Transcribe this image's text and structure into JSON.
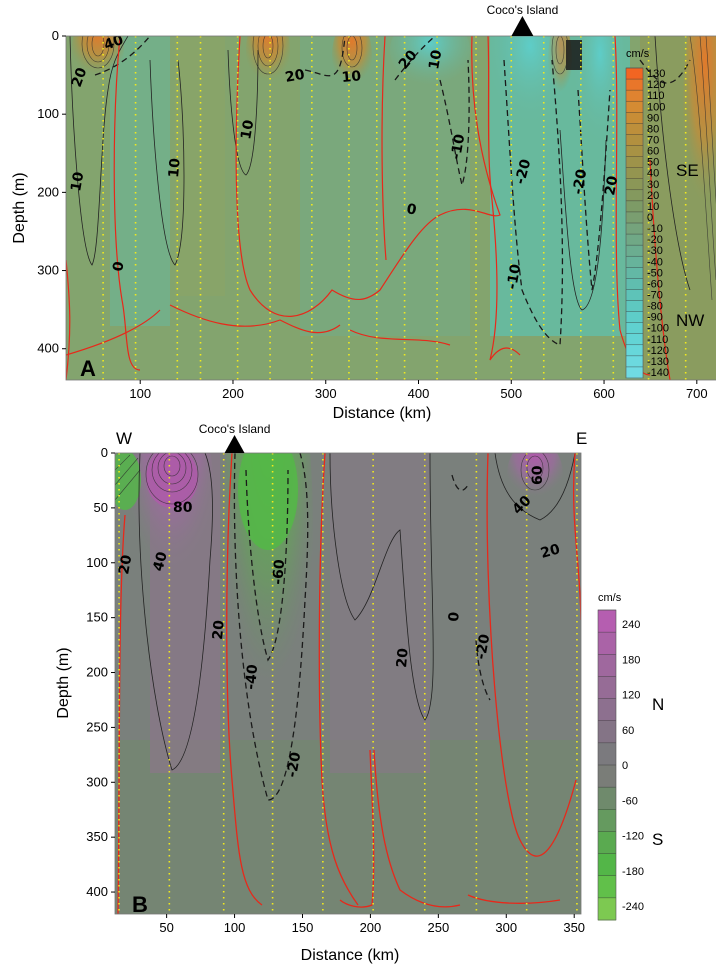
{
  "chart_data": [
    {
      "type": "heatmap",
      "panel_label": "A",
      "title": "",
      "xlabel": "Distance (km)",
      "ylabel": "Depth (m)",
      "xlim": [
        20,
        725
      ],
      "ylim": [
        440,
        0
      ],
      "x_ticks": [
        100,
        200,
        300,
        400,
        500,
        600,
        700
      ],
      "y_ticks": [
        0,
        100,
        200,
        300,
        400
      ],
      "marker": {
        "label": "Coco's Island",
        "x": 512
      },
      "station_lines_x": [
        60,
        95,
        140,
        165,
        205,
        240,
        285,
        325,
        355,
        385,
        420,
        462,
        500,
        535,
        575,
        610,
        648,
        688
      ],
      "colorbar": {
        "unit": "cm/s",
        "levels": [
          130,
          120,
          110,
          100,
          90,
          80,
          70,
          60,
          50,
          40,
          30,
          20,
          10,
          0,
          -10,
          -20,
          -30,
          -40,
          -50,
          -60,
          -70,
          -80,
          -90,
          -100,
          -110,
          -120,
          -130,
          -140
        ],
        "high_label": "SE",
        "low_label": "NW",
        "colors": [
          "#f26522",
          "#e9762a",
          "#df8330",
          "#d48b33",
          "#c88d36",
          "#bd8f3b",
          "#b2903f",
          "#a89244",
          "#9e934a",
          "#949550",
          "#8b9757",
          "#84995e",
          "#7d9b66",
          "#7a9e70",
          "#75a37c",
          "#70a886",
          "#6bad90",
          "#67b39b",
          "#63b8a5",
          "#60bdaf",
          "#5ec3b8",
          "#5ec8c0",
          "#5ecdc8",
          "#60d1cf",
          "#63d4d5",
          "#67d7da",
          "#6cd9df",
          "#70dbe3"
        ]
      },
      "contour_labels": [
        "40",
        "20",
        "20",
        "10",
        "10",
        "10",
        "0",
        "10",
        "20",
        "10",
        "0",
        "-10",
        "-20",
        "-10",
        "-20",
        "20",
        "10"
      ]
    },
    {
      "type": "heatmap",
      "panel_label": "B",
      "title": "",
      "xlabel": "Distance (km)",
      "ylabel": "Depth (m)",
      "xlim": [
        12,
        355
      ],
      "ylim": [
        420,
        0
      ],
      "x_ticks": [
        50,
        100,
        150,
        200,
        250,
        300,
        350
      ],
      "y_ticks": [
        0,
        50,
        100,
        150,
        200,
        250,
        300,
        350,
        400
      ],
      "marker": {
        "label": "Coco's Island",
        "x": 100
      },
      "west_label": "W",
      "east_label": "E",
      "station_lines_x": [
        15,
        52,
        92,
        128,
        165,
        202,
        240,
        278,
        315,
        352
      ],
      "colorbar": {
        "unit": "cm/s",
        "ticks": [
          240,
          180,
          120,
          60,
          0,
          -60,
          -120,
          -180,
          -240
        ],
        "high_label": "N",
        "low_label": "S",
        "colors": [
          "#b55eb0",
          "#aa63a7",
          "#9f689e",
          "#966c96",
          "#8d708f",
          "#847486",
          "#7b7a7e",
          "#7a7d78",
          "#6f8a6c",
          "#659a5f",
          "#5aaa50",
          "#53b648",
          "#61c04a",
          "#7dc951"
        ]
      },
      "contour_labels": [
        "20",
        "80",
        "40",
        "20",
        "-60",
        "-40",
        "-20",
        "20",
        "0",
        "-20",
        "60",
        "40",
        "20"
      ]
    }
  ]
}
